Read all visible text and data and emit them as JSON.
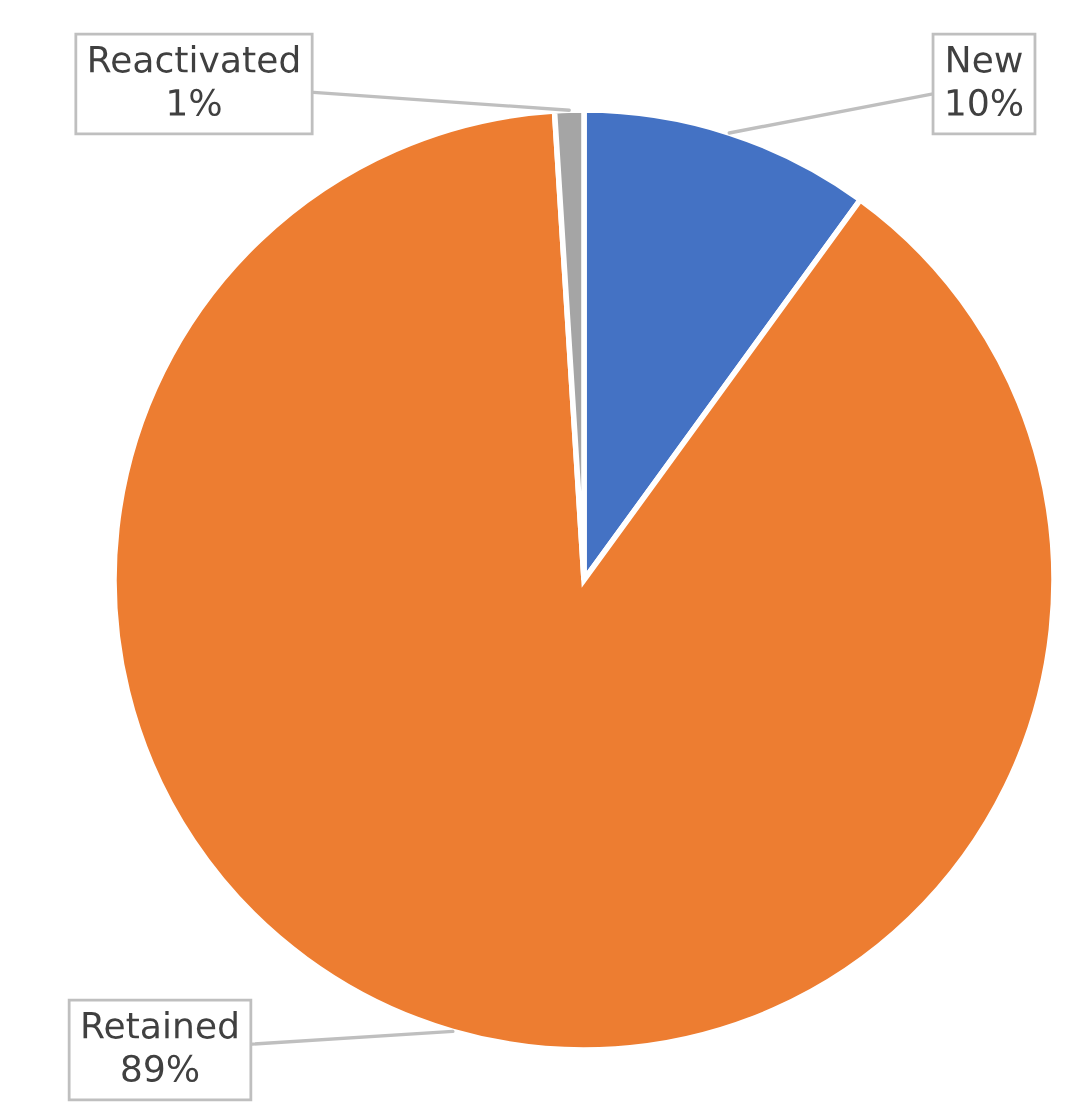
{
  "chart_data": {
    "type": "pie",
    "categories": [
      "New",
      "Retained",
      "Reactivated"
    ],
    "values": [
      10,
      89,
      1
    ],
    "colors": [
      "#4472c4",
      "#ed7d31",
      "#a5a5a5"
    ],
    "value_labels": [
      "10%",
      "89%",
      "1%"
    ],
    "legend": false
  }
}
